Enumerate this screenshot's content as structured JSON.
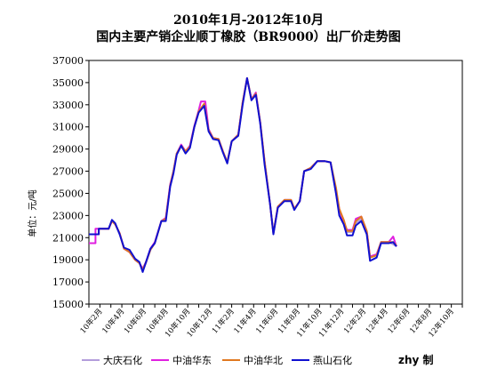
{
  "chart_data": {
    "type": "line",
    "title": "2010年1月-2012年10月",
    "subtitle": "国内主要产销企业顺丁橡胶（BR9000）出厂价走势图",
    "ylabel": "单位：元/吨",
    "xlabel": "",
    "ylim": [
      15000,
      37000
    ],
    "yticks": [
      15000,
      17000,
      19000,
      21000,
      23000,
      25000,
      27000,
      29000,
      31000,
      33000,
      35000,
      37000
    ],
    "x_tick_labels": [
      "10年2月",
      "10年4月",
      "10年6月",
      "10年8月",
      "10年10月",
      "10年12月",
      "11年2月",
      "11年4月",
      "11年6月",
      "11年8月",
      "11年10月",
      "11年12月",
      "12年2月",
      "12年4月",
      "12年6月",
      "12年8月",
      "12年10月"
    ],
    "x_range_months": [
      0,
      34
    ],
    "grid": false,
    "legend_position": "bottom",
    "credit": "zhy 制",
    "series": [
      {
        "name": "大庆石化",
        "color": "#b39ddb",
        "points": [
          [
            0,
            21300
          ],
          [
            0.9,
            21300
          ],
          [
            0.9,
            21800
          ],
          [
            1.8,
            21800
          ],
          [
            2.1,
            22500
          ],
          [
            2.4,
            22200
          ],
          [
            2.8,
            21300
          ],
          [
            3.2,
            20000
          ],
          [
            3.7,
            19700
          ],
          [
            4.2,
            19000
          ],
          [
            4.6,
            18700
          ],
          [
            4.9,
            18000
          ],
          [
            5.2,
            18700
          ],
          [
            5.6,
            19900
          ],
          [
            6.0,
            20500
          ],
          [
            6.6,
            22500
          ],
          [
            7.0,
            22700
          ],
          [
            7.4,
            25700
          ],
          [
            7.7,
            27000
          ],
          [
            8.0,
            28600
          ],
          [
            8.4,
            29300
          ],
          [
            8.8,
            28800
          ],
          [
            9.2,
            29200
          ],
          [
            9.6,
            31000
          ],
          [
            10.0,
            32400
          ],
          [
            10.5,
            33000
          ],
          [
            10.9,
            30700
          ],
          [
            11.3,
            30000
          ],
          [
            11.8,
            29900
          ],
          [
            12.2,
            28800
          ],
          [
            12.6,
            27800
          ],
          [
            13.0,
            29700
          ],
          [
            13.6,
            30300
          ],
          [
            14.0,
            33200
          ],
          [
            14.4,
            35400
          ],
          [
            14.8,
            33500
          ],
          [
            15.2,
            34000
          ],
          [
            15.6,
            31400
          ],
          [
            16.0,
            27800
          ],
          [
            16.5,
            24000
          ],
          [
            16.8,
            21400
          ],
          [
            17.2,
            23800
          ],
          [
            17.8,
            24400
          ],
          [
            18.4,
            24400
          ],
          [
            18.7,
            23600
          ],
          [
            19.2,
            24300
          ],
          [
            19.6,
            27000
          ],
          [
            20.2,
            27300
          ],
          [
            20.8,
            27900
          ],
          [
            21.5,
            27900
          ],
          [
            22.0,
            27800
          ],
          [
            22.5,
            25000
          ],
          [
            22.8,
            23200
          ],
          [
            23.2,
            22600
          ],
          [
            23.5,
            21500
          ],
          [
            24.0,
            21500
          ],
          [
            24.3,
            22300
          ],
          [
            24.8,
            22700
          ],
          [
            25.3,
            21500
          ],
          [
            25.6,
            19200
          ],
          [
            26.2,
            19400
          ],
          [
            26.6,
            20600
          ],
          [
            27.3,
            20600
          ],
          [
            27.7,
            20400
          ],
          [
            28.0,
            20200
          ]
        ]
      },
      {
        "name": "中油华东",
        "color": "#e020e0",
        "points": [
          [
            0,
            20500
          ],
          [
            0.6,
            20500
          ],
          [
            0.6,
            21800
          ],
          [
            1.8,
            21800
          ],
          [
            2.1,
            22500
          ],
          [
            2.4,
            22200
          ],
          [
            2.8,
            21400
          ],
          [
            3.2,
            20000
          ],
          [
            3.7,
            19700
          ],
          [
            4.2,
            19000
          ],
          [
            4.6,
            18700
          ],
          [
            4.9,
            18200
          ],
          [
            5.2,
            18800
          ],
          [
            5.6,
            20000
          ],
          [
            6.0,
            20600
          ],
          [
            6.6,
            22500
          ],
          [
            7.0,
            22800
          ],
          [
            7.4,
            25800
          ],
          [
            7.7,
            27000
          ],
          [
            8.0,
            28600
          ],
          [
            8.4,
            29400
          ],
          [
            8.8,
            28800
          ],
          [
            9.2,
            29300
          ],
          [
            9.6,
            31100
          ],
          [
            10.0,
            32500
          ],
          [
            10.2,
            33300
          ],
          [
            10.6,
            33300
          ],
          [
            10.9,
            30800
          ],
          [
            11.3,
            30000
          ],
          [
            11.8,
            29900
          ],
          [
            12.2,
            28800
          ],
          [
            12.6,
            27800
          ],
          [
            13.0,
            29700
          ],
          [
            13.6,
            30300
          ],
          [
            14.0,
            33200
          ],
          [
            14.4,
            35400
          ],
          [
            14.8,
            33500
          ],
          [
            15.2,
            34100
          ],
          [
            15.6,
            31400
          ],
          [
            16.0,
            27900
          ],
          [
            16.5,
            24000
          ],
          [
            16.8,
            21400
          ],
          [
            17.2,
            23800
          ],
          [
            17.8,
            24400
          ],
          [
            18.4,
            24400
          ],
          [
            18.7,
            23600
          ],
          [
            19.2,
            24300
          ],
          [
            19.6,
            27000
          ],
          [
            20.2,
            27300
          ],
          [
            20.8,
            27900
          ],
          [
            21.5,
            27900
          ],
          [
            22.0,
            27800
          ],
          [
            22.5,
            25200
          ],
          [
            22.8,
            23600
          ],
          [
            23.2,
            22400
          ],
          [
            23.5,
            21700
          ],
          [
            24.0,
            21700
          ],
          [
            24.3,
            22700
          ],
          [
            24.8,
            22900
          ],
          [
            25.3,
            21600
          ],
          [
            25.6,
            19300
          ],
          [
            26.2,
            19500
          ],
          [
            26.6,
            20600
          ],
          [
            27.3,
            20600
          ],
          [
            27.7,
            21100
          ],
          [
            28.0,
            20200
          ]
        ]
      },
      {
        "name": "中油华北",
        "color": "#e07820",
        "points": [
          [
            0,
            21300
          ],
          [
            0.9,
            21300
          ],
          [
            0.9,
            21800
          ],
          [
            1.8,
            21800
          ],
          [
            2.1,
            22500
          ],
          [
            2.4,
            22200
          ],
          [
            2.8,
            21400
          ],
          [
            3.2,
            20000
          ],
          [
            3.7,
            19700
          ],
          [
            4.2,
            19000
          ],
          [
            4.6,
            18700
          ],
          [
            4.9,
            18100
          ],
          [
            5.2,
            18800
          ],
          [
            5.6,
            19900
          ],
          [
            6.0,
            20500
          ],
          [
            6.6,
            22500
          ],
          [
            7.0,
            22700
          ],
          [
            7.4,
            25700
          ],
          [
            7.7,
            27000
          ],
          [
            8.0,
            28600
          ],
          [
            8.4,
            29300
          ],
          [
            8.8,
            28800
          ],
          [
            9.2,
            29200
          ],
          [
            9.6,
            31000
          ],
          [
            10.0,
            32400
          ],
          [
            10.5,
            33100
          ],
          [
            10.9,
            30700
          ],
          [
            11.3,
            30000
          ],
          [
            11.8,
            29900
          ],
          [
            12.2,
            28800
          ],
          [
            12.6,
            27800
          ],
          [
            13.0,
            29700
          ],
          [
            13.6,
            30300
          ],
          [
            14.0,
            33200
          ],
          [
            14.4,
            35400
          ],
          [
            14.8,
            33500
          ],
          [
            15.2,
            34000
          ],
          [
            15.6,
            31400
          ],
          [
            16.0,
            27900
          ],
          [
            16.5,
            24000
          ],
          [
            16.8,
            21400
          ],
          [
            17.2,
            23800
          ],
          [
            17.8,
            24400
          ],
          [
            18.4,
            24400
          ],
          [
            18.7,
            23600
          ],
          [
            19.2,
            24300
          ],
          [
            19.6,
            27000
          ],
          [
            20.2,
            27300
          ],
          [
            20.8,
            27900
          ],
          [
            21.5,
            27900
          ],
          [
            22.0,
            27800
          ],
          [
            22.5,
            25500
          ],
          [
            22.8,
            23600
          ],
          [
            23.2,
            22600
          ],
          [
            23.5,
            21600
          ],
          [
            24.0,
            21600
          ],
          [
            24.3,
            22500
          ],
          [
            24.8,
            22900
          ],
          [
            25.3,
            21600
          ],
          [
            25.6,
            19200
          ],
          [
            26.2,
            19400
          ],
          [
            26.6,
            20600
          ],
          [
            27.3,
            20600
          ],
          [
            27.7,
            20600
          ],
          [
            28.0,
            20300
          ]
        ]
      },
      {
        "name": "燕山石化",
        "color": "#1010d0",
        "points": [
          [
            0,
            21300
          ],
          [
            0.9,
            21300
          ],
          [
            0.9,
            21800
          ],
          [
            1.8,
            21800
          ],
          [
            2.1,
            22600
          ],
          [
            2.4,
            22300
          ],
          [
            2.8,
            21300
          ],
          [
            3.2,
            20100
          ],
          [
            3.7,
            19900
          ],
          [
            4.2,
            19100
          ],
          [
            4.6,
            18800
          ],
          [
            4.9,
            17900
          ],
          [
            5.2,
            18800
          ],
          [
            5.6,
            20000
          ],
          [
            6.0,
            20500
          ],
          [
            6.6,
            22500
          ],
          [
            7.0,
            22500
          ],
          [
            7.4,
            25600
          ],
          [
            7.7,
            26800
          ],
          [
            8.0,
            28500
          ],
          [
            8.4,
            29300
          ],
          [
            8.8,
            28600
          ],
          [
            9.2,
            29100
          ],
          [
            9.6,
            31000
          ],
          [
            10.0,
            32300
          ],
          [
            10.5,
            32900
          ],
          [
            10.9,
            30600
          ],
          [
            11.3,
            29900
          ],
          [
            11.8,
            29800
          ],
          [
            12.2,
            28700
          ],
          [
            12.6,
            27700
          ],
          [
            13.0,
            29700
          ],
          [
            13.6,
            30200
          ],
          [
            14.0,
            33000
          ],
          [
            14.4,
            35400
          ],
          [
            14.8,
            33400
          ],
          [
            15.2,
            33900
          ],
          [
            15.6,
            31300
          ],
          [
            16.0,
            27600
          ],
          [
            16.5,
            24000
          ],
          [
            16.8,
            21300
          ],
          [
            17.2,
            23700
          ],
          [
            17.8,
            24300
          ],
          [
            18.4,
            24300
          ],
          [
            18.7,
            23500
          ],
          [
            19.2,
            24300
          ],
          [
            19.6,
            27000
          ],
          [
            20.2,
            27200
          ],
          [
            20.8,
            27900
          ],
          [
            21.5,
            27900
          ],
          [
            22.0,
            27800
          ],
          [
            22.5,
            25000
          ],
          [
            22.8,
            23000
          ],
          [
            23.2,
            22200
          ],
          [
            23.5,
            21200
          ],
          [
            24.0,
            21200
          ],
          [
            24.3,
            22100
          ],
          [
            24.8,
            22500
          ],
          [
            25.3,
            21300
          ],
          [
            25.6,
            18900
          ],
          [
            26.2,
            19200
          ],
          [
            26.6,
            20500
          ],
          [
            27.3,
            20500
          ],
          [
            27.7,
            20600
          ],
          [
            28.0,
            20200
          ]
        ]
      }
    ]
  }
}
